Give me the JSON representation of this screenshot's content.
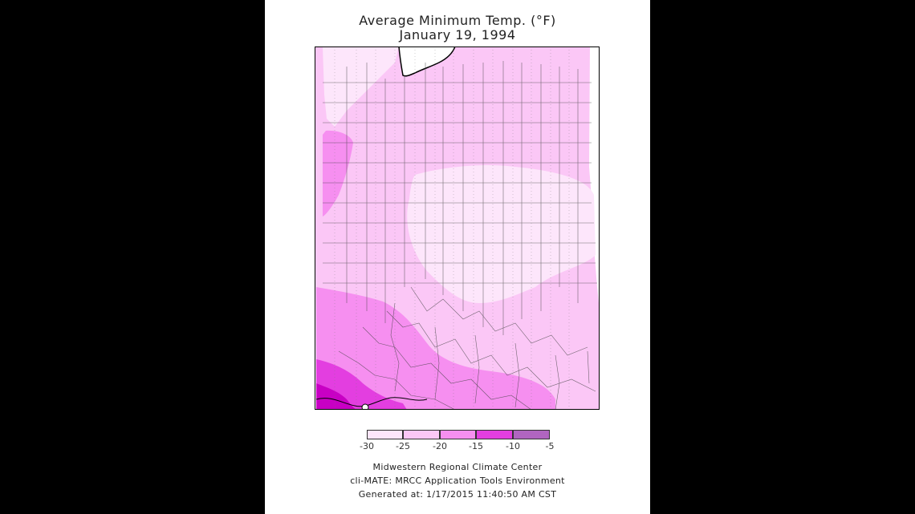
{
  "title": {
    "line1": "Average Minimum Temp. (°F)",
    "line2": "January 19, 1994"
  },
  "legend": {
    "ticks": [
      "-30",
      "-25",
      "-20",
      "-15",
      "-10",
      "-5"
    ],
    "colors": [
      "#fde6fb",
      "#fbc7f6",
      "#f68ff0",
      "#e33ee0",
      "#c800c4",
      "#b065c0"
    ]
  },
  "credits": {
    "line1": "Midwestern Regional Climate Center",
    "line2": "cli-MATE: MRCC Application Tools Environment",
    "line3": "Generated at: 1/17/2015 11:40:50 AM CST"
  },
  "map_colors": {
    "band_-30_-25": "#fde6fb",
    "band_-25_-20": "#fbc7f6",
    "band_-20_-15": "#f68ff0",
    "band_-15_-10": "#e33ee0",
    "band_-10_-5": "#c800c4",
    "lake": "#ffffff",
    "border": "#000000",
    "county_line": "#444444"
  }
}
